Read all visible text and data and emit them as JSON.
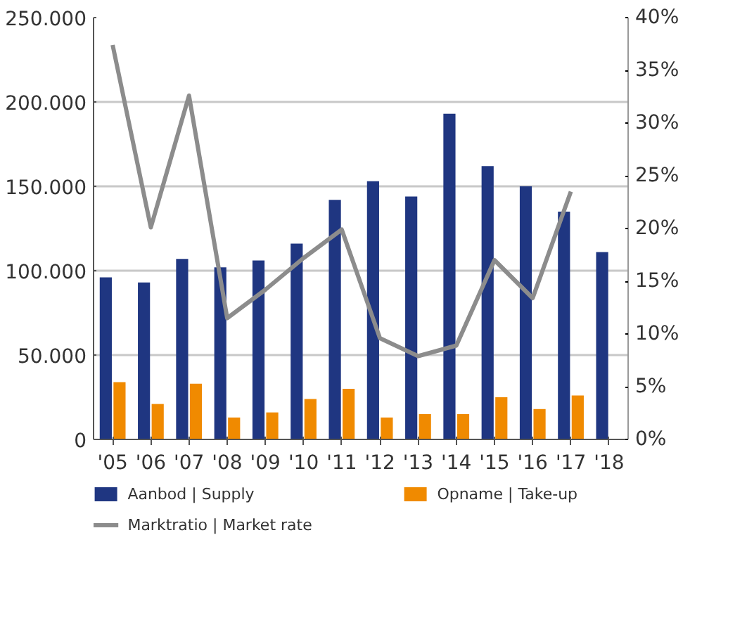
{
  "chart_data": {
    "type": "bar",
    "categories": [
      "'05",
      "'06",
      "'07",
      "'08",
      "'09",
      "'10",
      "'11",
      "'12",
      "'13",
      "'14",
      "'15",
      "'16",
      "'17",
      "'18"
    ],
    "series": [
      {
        "name": "Aanbod | Supply",
        "color": "#1f3681",
        "values": [
          96000,
          93000,
          107000,
          102000,
          106000,
          116000,
          142000,
          153000,
          144000,
          193000,
          162000,
          150000,
          135000,
          111000
        ]
      },
      {
        "name": "Opname | Take-up",
        "color": "#f08a00",
        "values": [
          34000,
          21000,
          33000,
          13000,
          16000,
          24000,
          30000,
          13000,
          15000,
          15000,
          25000,
          18000,
          26000,
          null
        ]
      },
      {
        "name": "Marktratio | Market rate",
        "color": "#8c8c8c",
        "type": "line",
        "axis": "y2",
        "values": [
          37.4,
          20.1,
          32.6,
          11.5,
          14.2,
          17.2,
          19.9,
          9.6,
          7.9,
          8.9,
          17.0,
          13.4,
          23.5,
          null
        ]
      }
    ],
    "ylim": [
      0,
      250000
    ],
    "yticks": [
      {
        "value": 0,
        "label": "0"
      },
      {
        "value": 50000,
        "label": "50.000"
      },
      {
        "value": 100000,
        "label": "100.000"
      },
      {
        "value": 150000,
        "label": "150.000"
      },
      {
        "value": 200000,
        "label": "200.000"
      },
      {
        "value": 250000,
        "label": "250.000"
      }
    ],
    "y2lim": [
      0,
      40
    ],
    "y2ticks": [
      {
        "value": 0,
        "label": "0%"
      },
      {
        "value": 5,
        "label": "5%"
      },
      {
        "value": 10,
        "label": "10%"
      },
      {
        "value": 15,
        "label": "15%"
      },
      {
        "value": 20,
        "label": "20%"
      },
      {
        "value": 25,
        "label": "25%"
      },
      {
        "value": 30,
        "label": "30%"
      },
      {
        "value": 35,
        "label": "35%"
      },
      {
        "value": 40,
        "label": "40%"
      }
    ],
    "grid": "y",
    "legend": "bottom",
    "marker": "none",
    "line_style": "solid"
  }
}
